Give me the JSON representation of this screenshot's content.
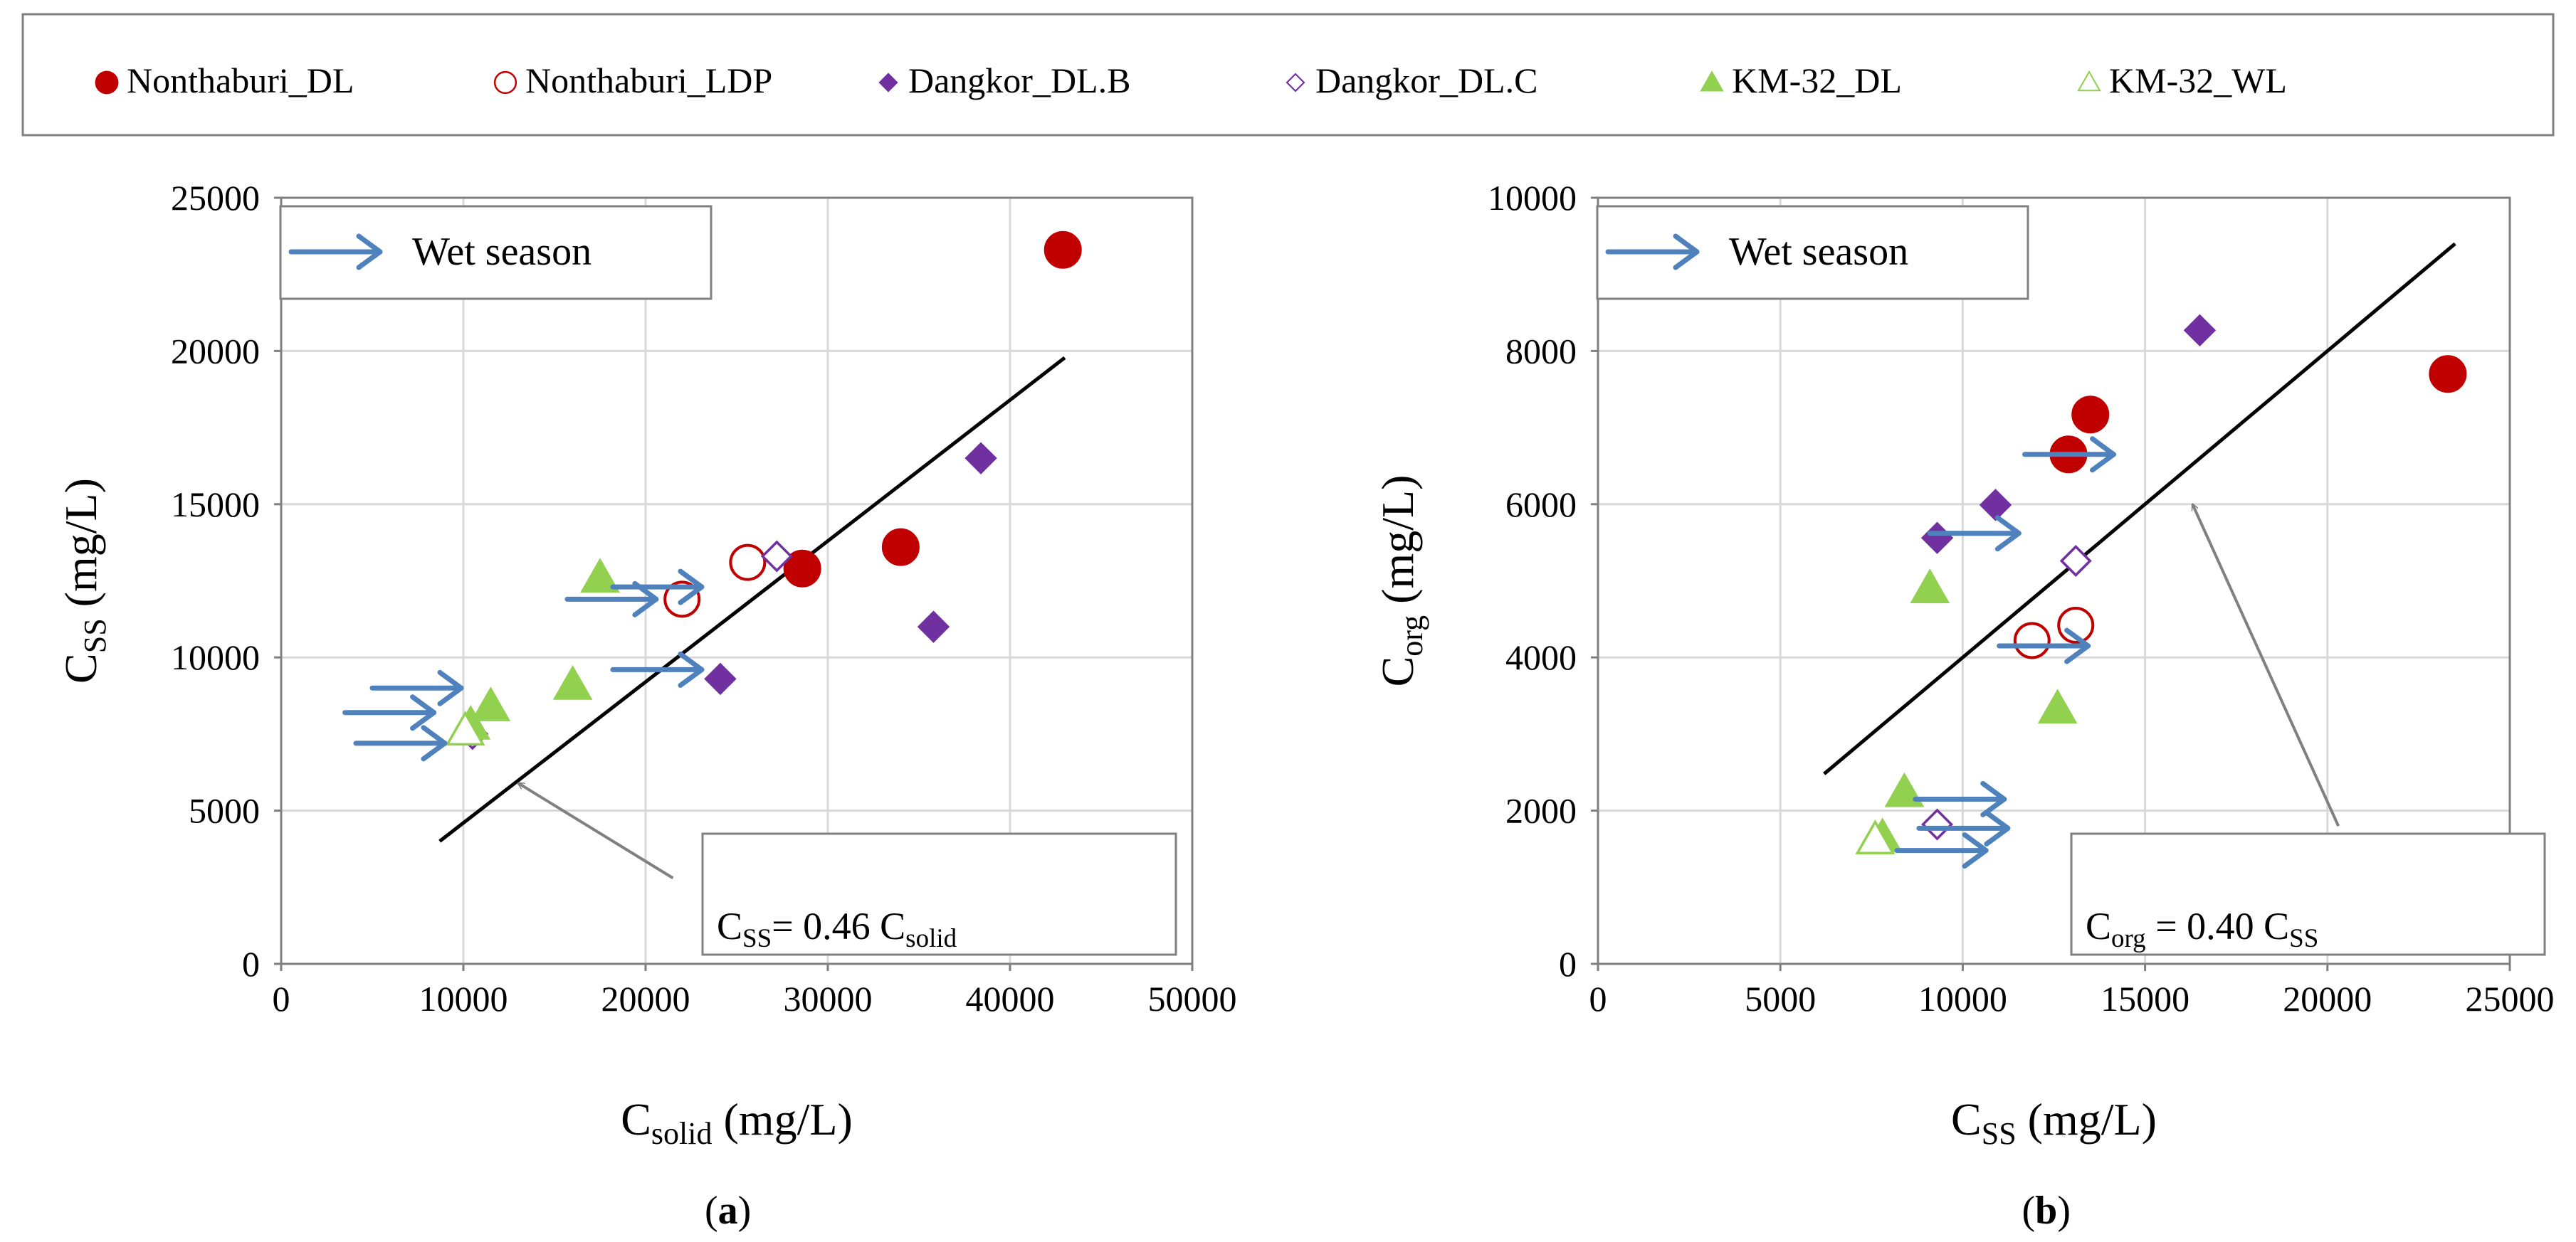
{
  "legend": {
    "items": [
      {
        "label": "Nonthaburi_DL",
        "marker": "circle",
        "filled": true,
        "color": "#c00000"
      },
      {
        "label": "Nonthaburi_LDP",
        "marker": "circle",
        "filled": false,
        "color": "#c00000"
      },
      {
        "label": "Dangkor_DL.B",
        "marker": "diamond",
        "filled": true,
        "color": "#7030a0"
      },
      {
        "label": "Dangkor_DL.C",
        "marker": "diamond",
        "filled": false,
        "color": "#7030a0"
      },
      {
        "label": "KM-32_DL",
        "marker": "triangle",
        "filled": true,
        "color": "#92d050"
      },
      {
        "label": "KM-32_WL",
        "marker": "triangle",
        "filled": false,
        "color": "#92d050"
      }
    ]
  },
  "colors": {
    "arrow": "#4f81bd",
    "grid": "#d9d9d9",
    "axis": "#808080",
    "fit": "#000000",
    "pointer": "#808080"
  },
  "chart_data": [
    {
      "type": "scatter",
      "panel": "(a)",
      "panel_letter": "a",
      "ylabel": {
        "main": "C",
        "sub": "SS",
        "units": "(mg/L)"
      },
      "xlabel": {
        "main": "C",
        "sub": "solid",
        "units": "(mg/L)"
      },
      "xlim": [
        0,
        50000
      ],
      "ylim": [
        0,
        25000
      ],
      "xticks": [
        0,
        10000,
        20000,
        30000,
        40000,
        50000
      ],
      "yticks": [
        0,
        5000,
        10000,
        15000,
        20000,
        25000
      ],
      "series": [
        {
          "name": "Nonthaburi_DL",
          "points": [
            [
              42900,
              23300
            ],
            [
              28600,
              12900
            ],
            [
              34000,
              13600
            ]
          ]
        },
        {
          "name": "Nonthaburi_LDP",
          "points": [
            [
              22000,
              11900
            ],
            [
              25600,
              13100
            ]
          ]
        },
        {
          "name": "Dangkor_DL.B",
          "points": [
            [
              38400,
              16500
            ],
            [
              35800,
              11000
            ],
            [
              24100,
              9300
            ]
          ]
        },
        {
          "name": "Dangkor_DL.C",
          "points": [
            [
              27200,
              13300
            ],
            [
              10500,
              7500
            ]
          ]
        },
        {
          "name": "KM-32_DL",
          "points": [
            [
              17500,
              12600
            ],
            [
              16000,
              9100
            ],
            [
              11500,
              8400
            ],
            [
              10400,
              7800
            ]
          ]
        },
        {
          "name": "KM-32_WL",
          "points": [
            [
              10100,
              7600
            ]
          ]
        }
      ],
      "fit_line": {
        "slope": 0.46,
        "x": [
          8700,
          43000
        ],
        "label": {
          "lhs": "C",
          "lhs_sub": "SS",
          "eq": "= 0.46 C",
          "rhs_sub": "solid"
        }
      },
      "wet_season_arrows": [
        [
          5000,
          9000
        ],
        [
          3500,
          8200
        ],
        [
          4100,
          7200
        ],
        [
          15700,
          11900
        ],
        [
          18200,
          12300
        ],
        [
          18200,
          9600
        ]
      ],
      "wet_season_label": "Wet season",
      "pointer": {
        "from": [
          21500,
          2800
        ],
        "to": [
          13000,
          5900
        ]
      }
    },
    {
      "type": "scatter",
      "panel": "(b)",
      "panel_letter": "b",
      "ylabel": {
        "main": "C",
        "sub": "org",
        "units": "(mg/L)"
      },
      "xlabel": {
        "main": "C",
        "sub": "SS",
        "units": "(mg/L)"
      },
      "xlim": [
        0,
        25000
      ],
      "ylim": [
        0,
        10000
      ],
      "xticks": [
        0,
        5000,
        10000,
        15000,
        20000,
        25000
      ],
      "yticks": [
        0,
        2000,
        4000,
        6000,
        8000,
        10000
      ],
      "series": [
        {
          "name": "Nonthaburi_DL",
          "points": [
            [
              23300,
              7700
            ],
            [
              13500,
              7170
            ],
            [
              12900,
              6650
            ]
          ]
        },
        {
          "name": "Nonthaburi_LDP",
          "points": [
            [
              11900,
              4220
            ],
            [
              13100,
              4420
            ]
          ]
        },
        {
          "name": "Dangkor_DL.B",
          "points": [
            [
              16500,
              8270
            ],
            [
              10900,
              5990
            ],
            [
              9300,
              5560
            ]
          ]
        },
        {
          "name": "Dangkor_DL.C",
          "points": [
            [
              13100,
              5260
            ],
            [
              9300,
              1820
            ]
          ]
        },
        {
          "name": "KM-32_DL",
          "points": [
            [
              9100,
              4900
            ],
            [
              12600,
              3330
            ],
            [
              8400,
              2240
            ],
            [
              7800,
              1650
            ]
          ]
        },
        {
          "name": "KM-32_WL",
          "points": [
            [
              7600,
              1620
            ]
          ]
        }
      ],
      "fit_line": {
        "slope": 0.4,
        "x": [
          6200,
          23500
        ],
        "label": {
          "lhs": "C",
          "lhs_sub": "org",
          "eq": " = 0.40 C",
          "rhs_sub": "SS"
        }
      },
      "wet_season_arrows": [
        [
          9100,
          5620
        ],
        [
          11700,
          6650
        ],
        [
          11000,
          4150
        ],
        [
          8700,
          2150
        ],
        [
          8800,
          1770
        ],
        [
          8200,
          1480
        ]
      ],
      "wet_season_label": "Wet season",
      "pointer": {
        "from": [
          20300,
          1800
        ],
        "to": [
          16300,
          6000
        ]
      }
    }
  ]
}
